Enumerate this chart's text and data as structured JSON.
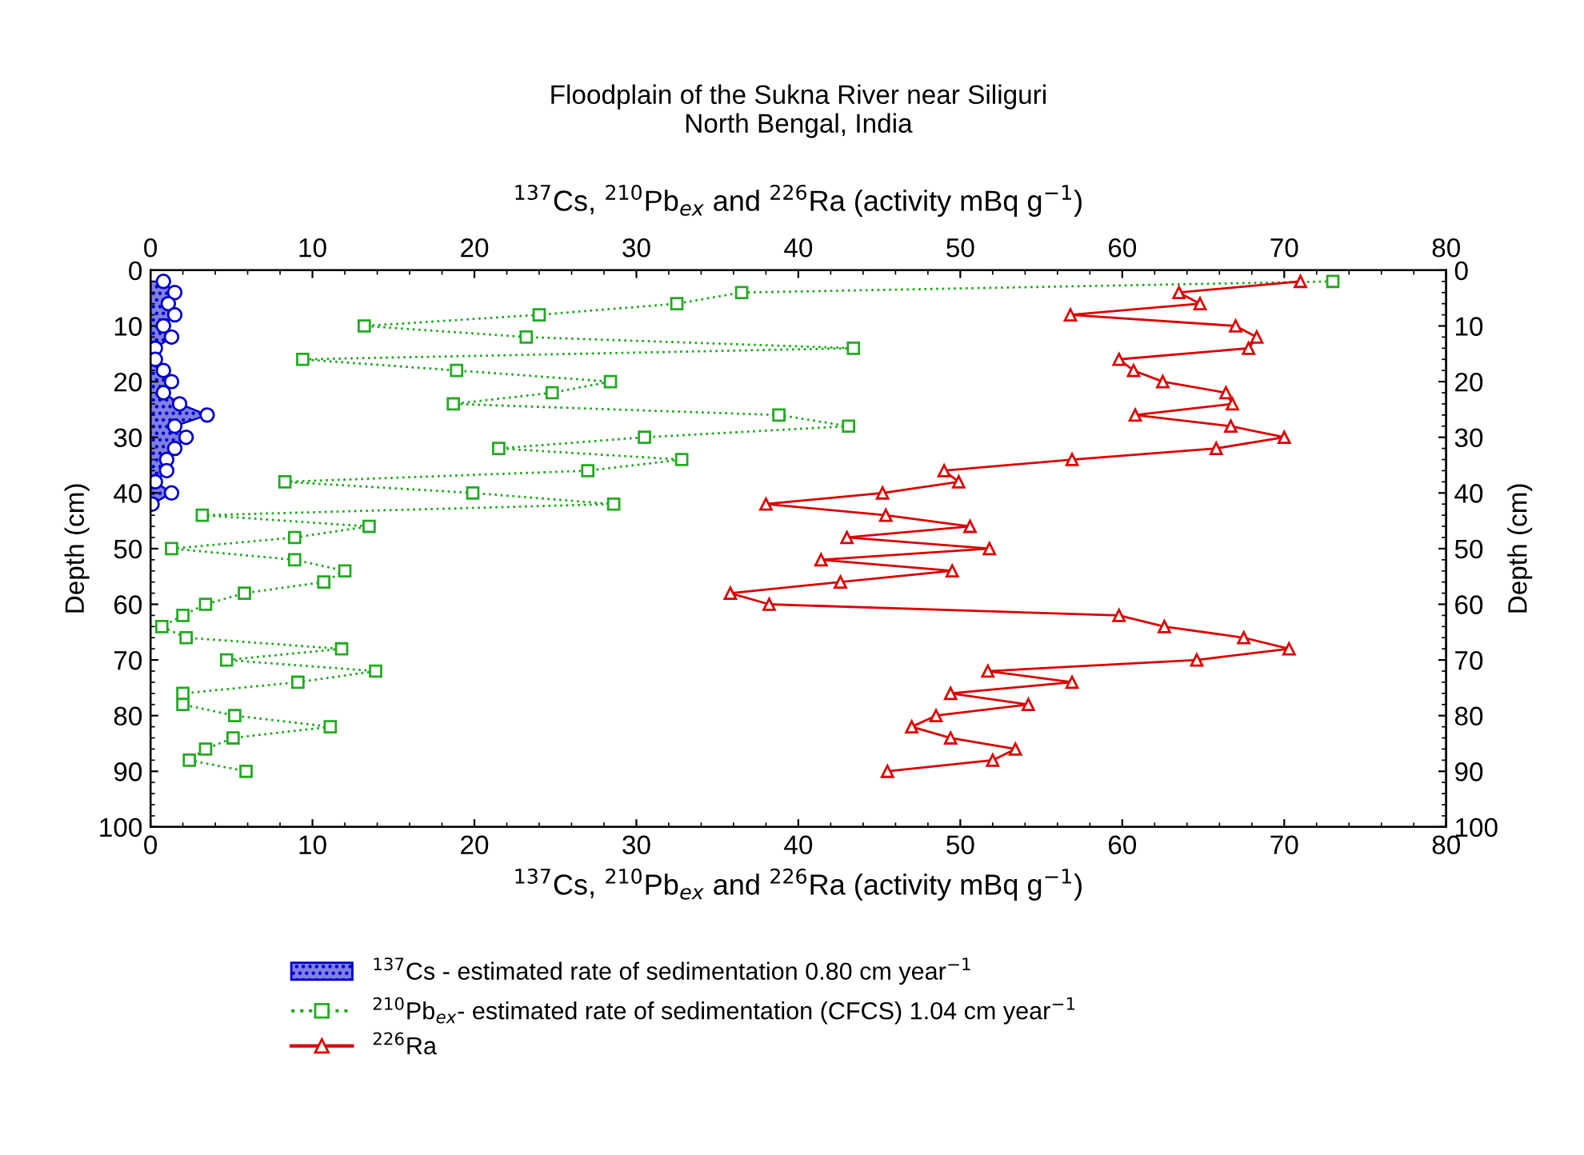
{
  "chart_data": {
    "type": "line",
    "title": "Floodplain of the Sukna River near Siliguri\nNorth Bengal, India",
    "xlabel": "$^{137}$Cs, $^{210}$Pb$_{ex}$ and $^{226}$Ra (activity mBq g$^{−1}$)",
    "x2label": "$^{137}$Cs, $^{210}$Pb$_{ex}$ and $^{226}$Ra (activity mBq g$^{−1}$)",
    "ylabel": "Depth (cm)",
    "y2label": "Depth (cm)",
    "xlim": [
      0,
      80
    ],
    "xticks": [
      0,
      10,
      20,
      30,
      40,
      50,
      60,
      70,
      80
    ],
    "x2lim": [
      0,
      80
    ],
    "x2ticks": [
      0,
      10,
      20,
      30,
      40,
      50,
      60,
      70,
      80
    ],
    "ylim": [
      100,
      0
    ],
    "yticks": [
      0,
      10,
      20,
      30,
      40,
      50,
      60,
      70,
      80,
      90,
      100
    ],
    "y2lim": [
      100,
      0
    ],
    "y2ticks": [
      0,
      10,
      20,
      30,
      40,
      50,
      60,
      70,
      80,
      90,
      100
    ],
    "grid": false,
    "legend": "bottom",
    "series": [
      {
        "name": "$^{137}$Cs - estimated rate of sedimentation 0.80 cm year$^{−1}$",
        "type": "area",
        "color": "#0000cc",
        "marker": "circle",
        "line_style": "solid",
        "x": [
          0.8,
          1.5,
          1.1,
          1.5,
          0.8,
          1.3,
          0.3,
          0.3,
          0.8,
          1.3,
          0.8,
          1.8,
          3.5,
          1.5,
          2.2,
          1.5,
          1.0,
          1.0,
          0.3,
          1.3,
          0.1
        ],
        "values": [
          2,
          4,
          6,
          8,
          10,
          12,
          14,
          16,
          18,
          20,
          22,
          24,
          26,
          28,
          30,
          32,
          34,
          36,
          38,
          40,
          42
        ]
      },
      {
        "name": "$^{210}$Pb$_{ex}$- estimated rate of sedimentation (CFCS) 1.04 cm year$^{−1}$",
        "color": "#22aa22",
        "marker": "square",
        "line_style": "dotted",
        "x": [
          73,
          36.5,
          32.5,
          24.0,
          13.2,
          23.2,
          43.4,
          9.4,
          18.9,
          28.4,
          24.8,
          18.7,
          38.8,
          43.1,
          30.5,
          21.5,
          32.8,
          27.0,
          8.3,
          19.9,
          28.6,
          3.2,
          13.5,
          8.9,
          1.3,
          8.9,
          12.0,
          10.7,
          5.8,
          3.4,
          2.0,
          0.7,
          2.2,
          11.8,
          4.7,
          13.9,
          9.1,
          2.0,
          2.0,
          5.2,
          11.1,
          5.1,
          3.4,
          2.4,
          5.9
        ],
        "values": [
          2,
          4,
          6,
          8,
          10,
          12,
          14,
          16,
          18,
          20,
          22,
          24,
          26,
          28,
          30,
          32,
          34,
          36,
          38,
          40,
          42,
          44,
          46,
          48,
          50,
          52,
          54,
          56,
          58,
          60,
          62,
          64,
          66,
          68,
          70,
          72,
          74,
          76,
          78,
          80,
          82,
          84,
          86,
          88,
          90
        ]
      },
      {
        "name": "$^{226}$Ra",
        "color": "#dd0000",
        "marker": "triangle",
        "line_style": "solid",
        "x": [
          71,
          63.5,
          64.8,
          56.8,
          67,
          68.3,
          67.8,
          59.8,
          60.7,
          62.5,
          66.4,
          66.8,
          60.8,
          66.7,
          70,
          65.8,
          56.9,
          49.0,
          49.9,
          45.2,
          38.0,
          45.4,
          50.6,
          43.0,
          51.8,
          41.4,
          49.5,
          42.6,
          35.8,
          38.2,
          59.8,
          62.6,
          67.5,
          70.3,
          64.6,
          51.7,
          56.9,
          49.4,
          54.2,
          48.5,
          47.0,
          49.4,
          53.4,
          52.0,
          45.5
        ],
        "values": [
          2,
          4,
          6,
          8,
          10,
          12,
          14,
          16,
          18,
          20,
          22,
          24,
          26,
          28,
          30,
          32,
          34,
          36,
          38,
          40,
          42,
          44,
          46,
          48,
          50,
          52,
          54,
          56,
          58,
          60,
          62,
          64,
          66,
          68,
          70,
          72,
          74,
          76,
          78,
          80,
          82,
          84,
          86,
          88,
          90
        ]
      }
    ]
  }
}
